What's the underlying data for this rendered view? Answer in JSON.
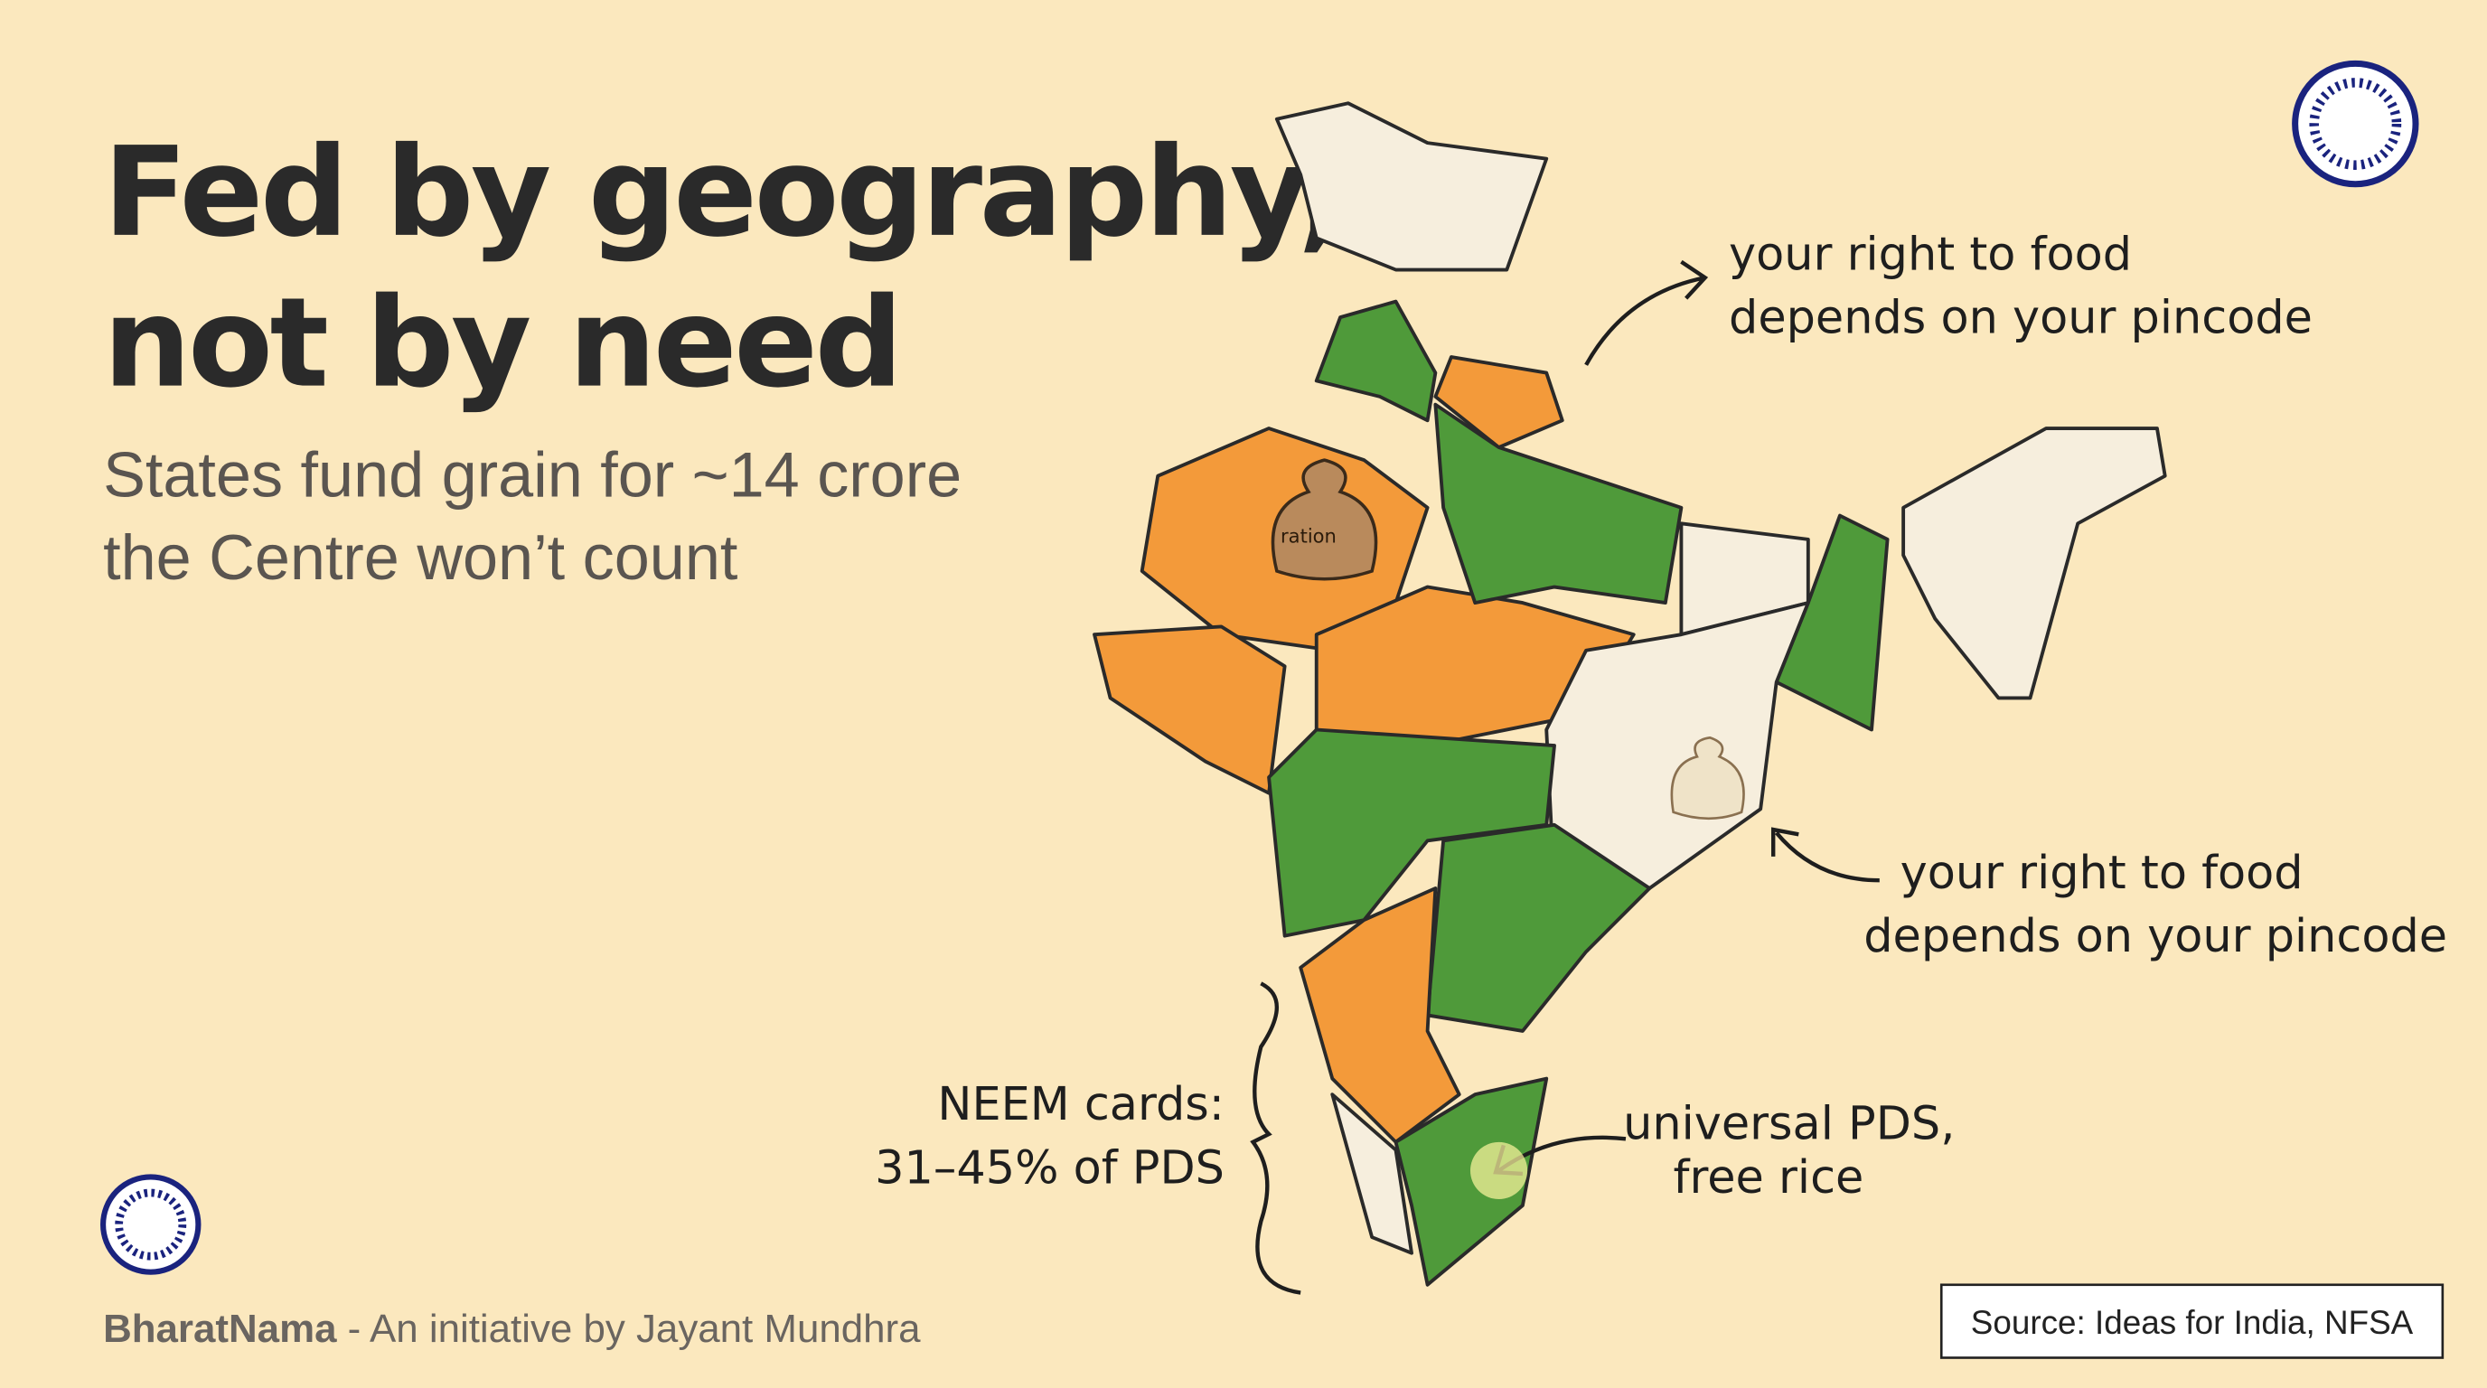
{
  "header": {
    "title_lines": [
      "Fed by geography,",
      "not by need"
    ],
    "subtitle_lines": [
      "States fund grain for ~14 crore",
      "the Centre won’t count"
    ]
  },
  "map": {
    "bag_label": "ration"
  },
  "annotations": {
    "north": [
      "your right to food",
      "depends on your pincode"
    ],
    "east": [
      "your right to food",
      "depends on your pincode"
    ],
    "neem": [
      "NEEM cards:",
      "31–45% of PDS"
    ],
    "south": [
      "universal PDS,",
      "free rice"
    ]
  },
  "footer": {
    "brand": "BharatNama",
    "tagline": " - An initiative by Jayant Mundhra",
    "source": "Source: Ideas for India, NFSA"
  }
}
